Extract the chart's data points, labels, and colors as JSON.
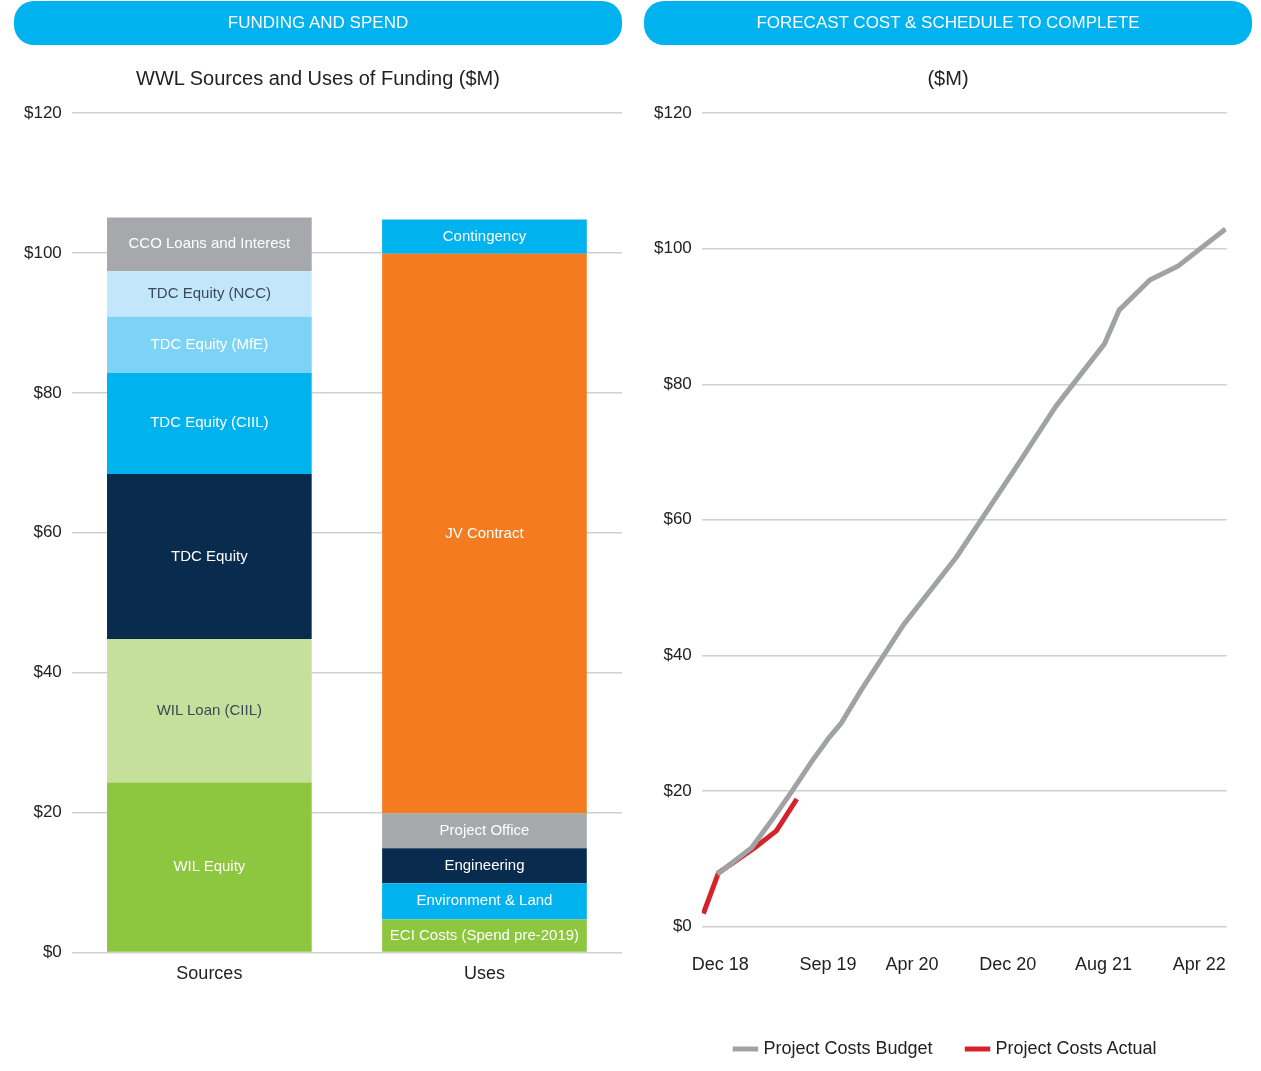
{
  "chart_data": [
    {
      "type": "bar",
      "title": "FUNDING AND SPEND",
      "subtitle": "WWL Sources and Uses of Funding ($M)",
      "categories": [
        "Sources",
        "Uses"
      ],
      "stacked": true,
      "legend": false,
      "grid": "y",
      "data_labels": false,
      "ylim": [
        0,
        120
      ],
      "yticks": [
        {
          "value": 0,
          "label": "$0"
        },
        {
          "value": 20,
          "label": "$20"
        },
        {
          "value": 40,
          "label": "$40"
        },
        {
          "value": 60,
          "label": "$60"
        },
        {
          "value": 80,
          "label": "$80"
        },
        {
          "value": 100,
          "label": "$100"
        },
        {
          "value": 120,
          "label": "$120"
        }
      ],
      "series": [
        {
          "name": "WIL Equity",
          "color": "#8dc63f",
          "values": [
            24.3,
            null
          ]
        },
        {
          "name": "WIL Loan (CIIL)",
          "color": "#c5e09b",
          "values": [
            20.5,
            null
          ]
        },
        {
          "name": "TDC Equity",
          "color": "#082b4e",
          "values": [
            23.6,
            null
          ]
        },
        {
          "name": "TDC Equity (CIIL)",
          "color": "#00b2ee",
          "values": [
            14.5,
            null
          ]
        },
        {
          "name": "TDC Equity (MfE)",
          "color": "#7dd3f5",
          "values": [
            8.0,
            null
          ]
        },
        {
          "name": "TDC Equity (NCC)",
          "color": "#c2e7fa",
          "values": [
            6.5,
            null
          ]
        },
        {
          "name": "CCO Loans and Interest",
          "color": "#a6a8ab",
          "values": [
            7.7,
            null
          ]
        },
        {
          "name": "ECI Costs (Spend pre-2019)",
          "color": "#8dc63f",
          "values": [
            null,
            4.7
          ]
        },
        {
          "name": "Environment & Land",
          "color": "#00b2ee",
          "values": [
            null,
            5.2
          ]
        },
        {
          "name": "Engineering",
          "color": "#082b4e",
          "values": [
            null,
            5.0
          ]
        },
        {
          "name": "Project Office",
          "color": "#a6a8ab",
          "values": [
            null,
            5.0
          ]
        },
        {
          "name": "JV Contract",
          "color": "#f47b20",
          "values": [
            null,
            80.0
          ]
        },
        {
          "name": "Contingency",
          "color": "#00b2ee",
          "values": [
            null,
            4.9
          ]
        }
      ]
    },
    {
      "type": "line",
      "title": "FORECAST COST & SCHEDULE TO COMPLETE",
      "subtitle": "($M)",
      "legend": "bottom",
      "grid": "y",
      "marker": "none",
      "line_style": "solid",
      "xlim": [
        "2018-10-15",
        "2022-06-10"
      ],
      "xticks": [
        {
          "value": "2018-12-01",
          "label": "Dec 18"
        },
        {
          "value": "2019-09-01",
          "label": "Sep 19"
        },
        {
          "value": "2020-04-01",
          "label": "Apr 20"
        },
        {
          "value": "2020-12-01",
          "label": "Dec 20"
        },
        {
          "value": "2021-08-01",
          "label": "Aug 21"
        },
        {
          "value": "2022-04-01",
          "label": "Apr 22"
        }
      ],
      "ylim": [
        0,
        120
      ],
      "yticks": [
        {
          "value": 0,
          "label": "$0"
        },
        {
          "value": 20,
          "label": "$20"
        },
        {
          "value": 40,
          "label": "$40"
        },
        {
          "value": 60,
          "label": "$60"
        },
        {
          "value": 80,
          "label": "$80"
        },
        {
          "value": 100,
          "label": "$100"
        },
        {
          "value": 120,
          "label": "$120"
        }
      ],
      "series": [
        {
          "name": "Project Costs Budget",
          "color": "#a0a2a5",
          "x": [
            "2018-11-24",
            "2019-02-20",
            "2019-04-13",
            "2019-06-01",
            "2019-07-19",
            "2019-09-04",
            "2019-10-04",
            "2019-11-25",
            "2020-03-10",
            "2020-07-22",
            "2020-12-28",
            "2021-04-01",
            "2021-08-04",
            "2021-09-10",
            "2021-11-28",
            "2022-02-07",
            "2022-06-07"
          ],
          "values": [
            7.7,
            11.6,
            15.9,
            20.0,
            24.2,
            27.9,
            30.0,
            34.9,
            44.5,
            54.4,
            68.2,
            76.7,
            86.0,
            90.9,
            95.4,
            97.4,
            102.9
          ]
        },
        {
          "name": "Project Costs Actual",
          "color": "#d5232b",
          "x": [
            "2018-10-19",
            "2018-11-27",
            "2019-02-28",
            "2019-04-22",
            "2019-06-13"
          ],
          "values": [
            1.9,
            7.9,
            11.6,
            14.1,
            18.8
          ]
        }
      ]
    }
  ]
}
